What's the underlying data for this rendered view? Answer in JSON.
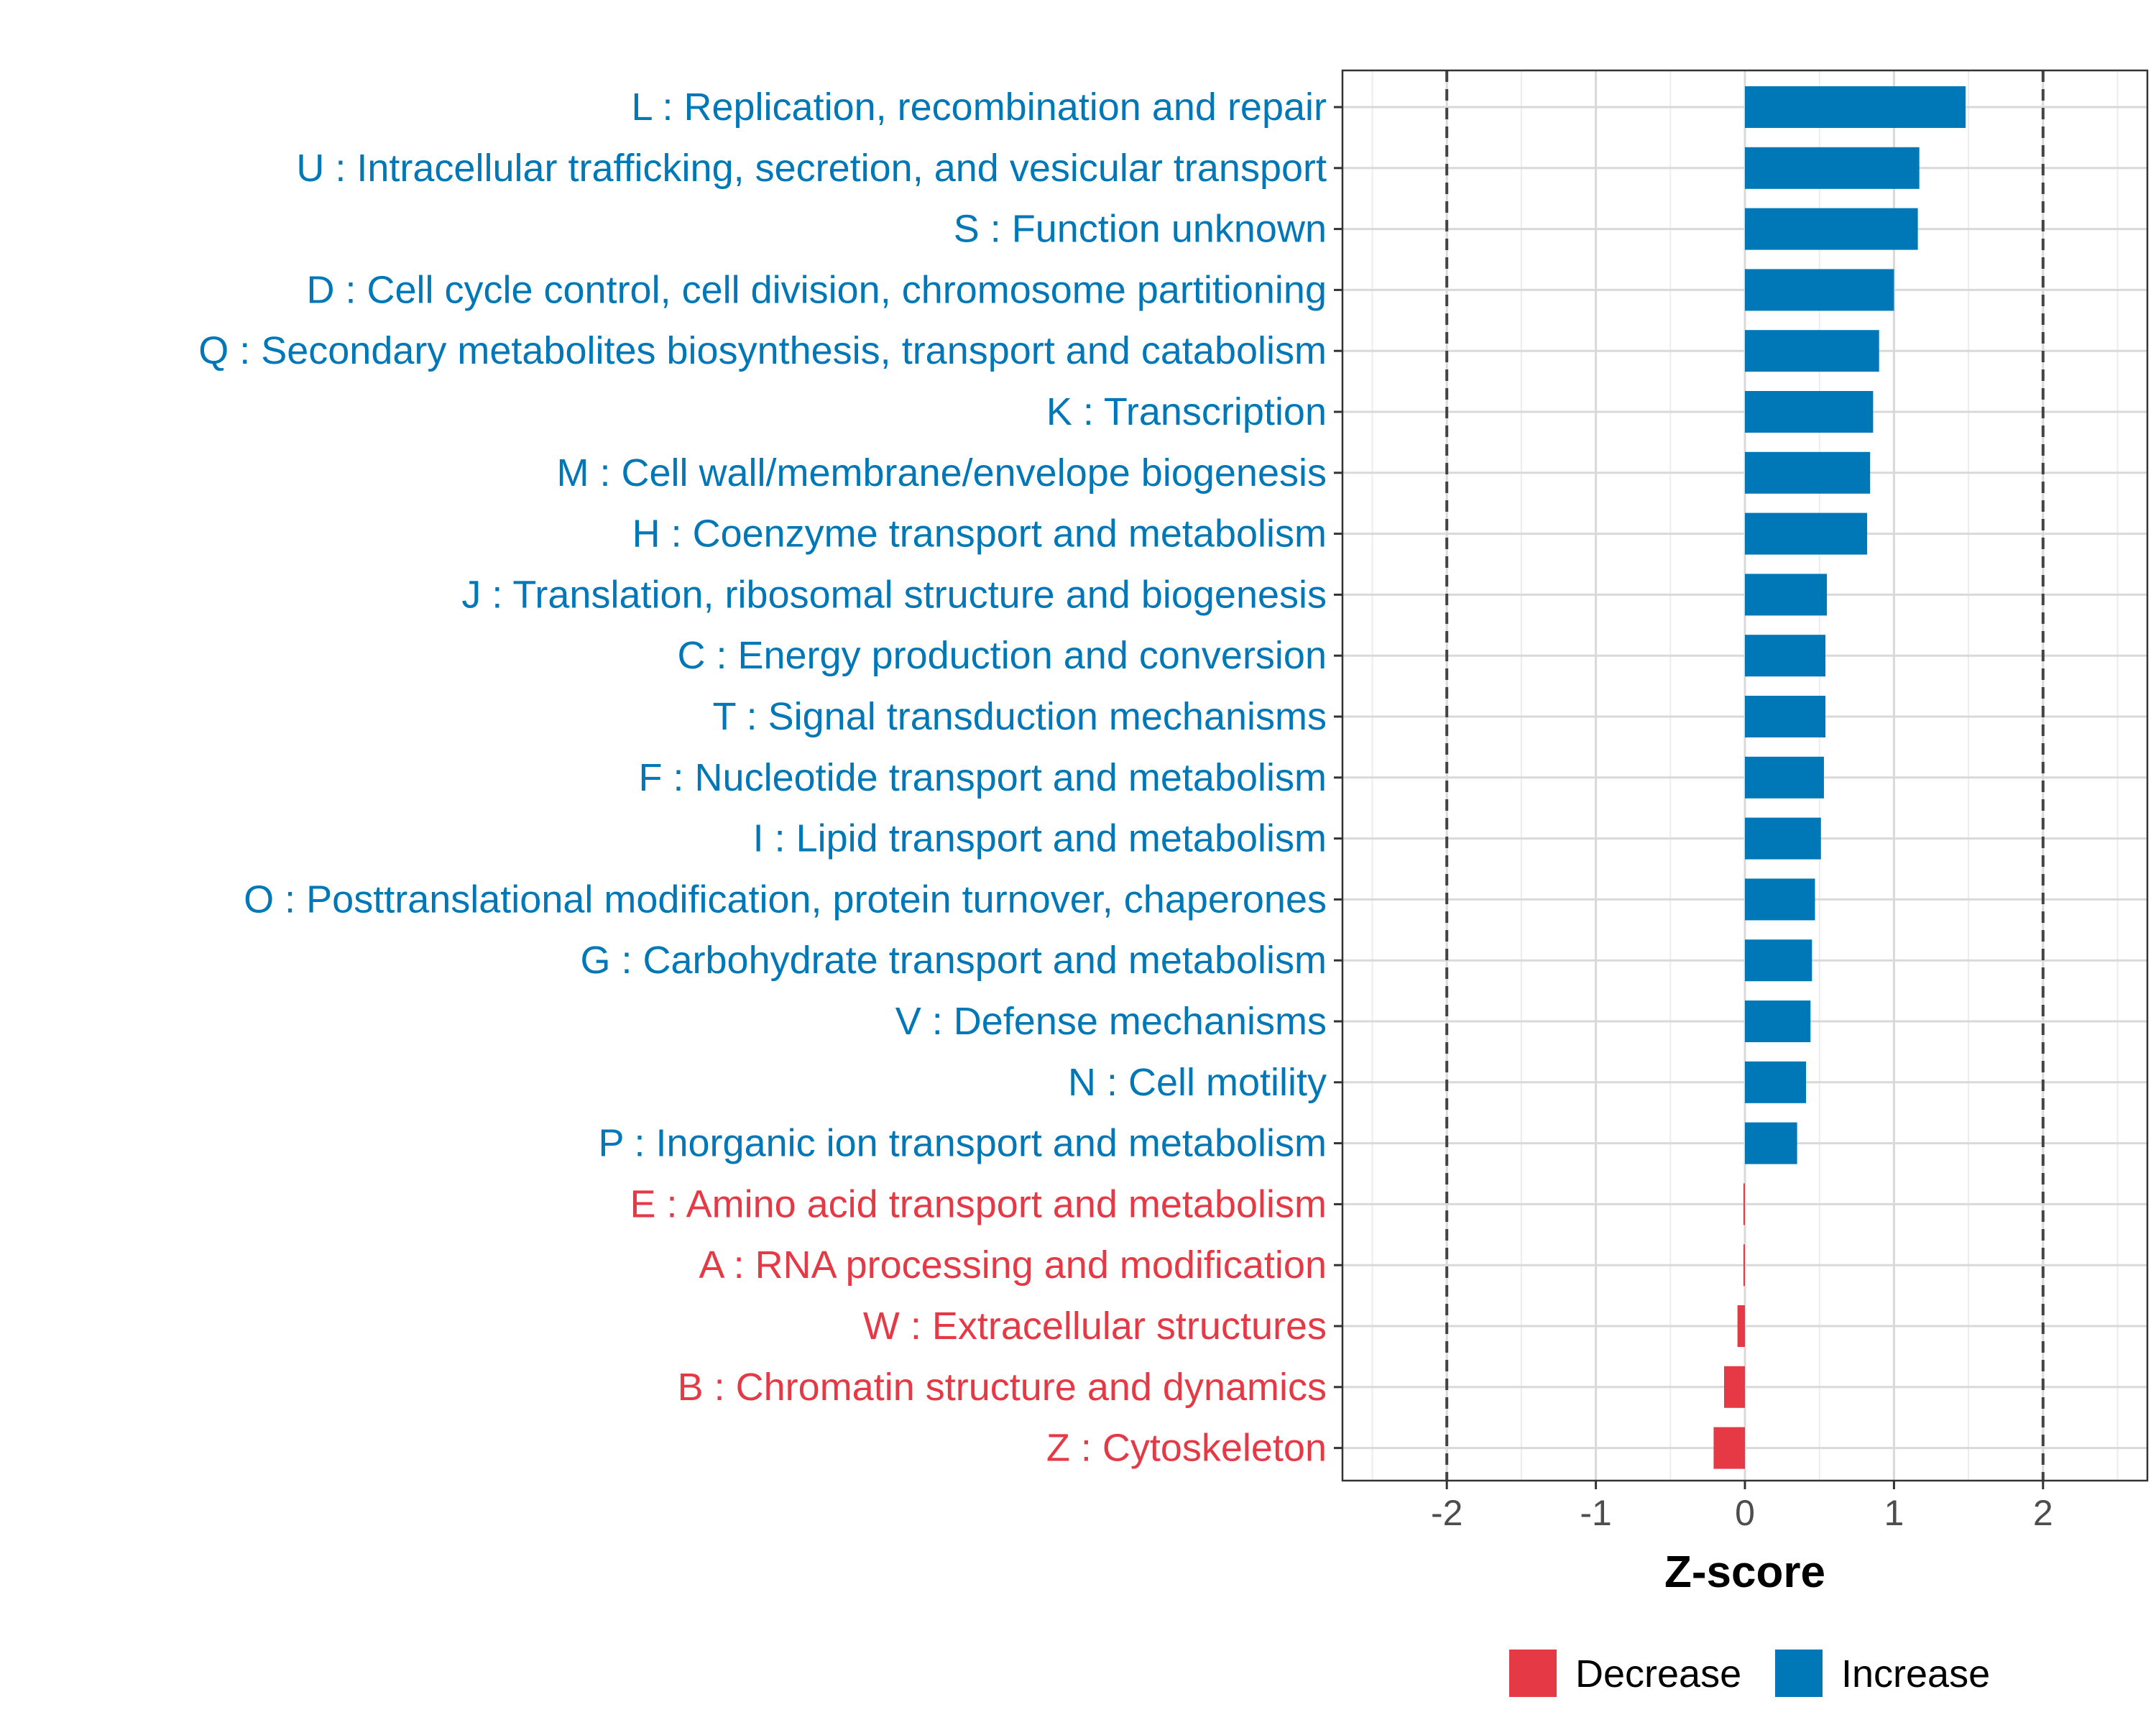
{
  "chart_data": {
    "type": "bar",
    "orientation": "horizontal",
    "title": "",
    "xlabel": "Z-score",
    "ylabel": "",
    "xlim": [
      -2.7,
      2.7
    ],
    "xticks": [
      -2,
      -1,
      0,
      1,
      2
    ],
    "reference_lines": [
      -2,
      2
    ],
    "grid": true,
    "legend_position": "bottom",
    "colors": {
      "Decrease": "#e63946",
      "Increase": "#0077b6"
    },
    "legend": [
      {
        "label": "Decrease",
        "color": "#e63946"
      },
      {
        "label": "Increase",
        "color": "#0077b6"
      }
    ],
    "categories": [
      "L : Replication, recombination and repair",
      "U : Intracellular trafficking, secretion, and vesicular transport",
      "S : Function unknown",
      "D : Cell cycle control, cell division, chromosome partitioning",
      "Q : Secondary metabolites biosynthesis, transport and catabolism",
      "K : Transcription",
      "M : Cell wall/membrane/envelope biogenesis",
      "H : Coenzyme transport and metabolism",
      "J : Translation, ribosomal structure and biogenesis",
      "C : Energy production and conversion",
      "T : Signal transduction mechanisms",
      "F : Nucleotide transport and metabolism",
      "I : Lipid transport and metabolism",
      "O : Posttranslational modification, protein turnover, chaperones",
      "G : Carbohydrate transport and metabolism",
      "V : Defense mechanisms",
      "N : Cell motility",
      "P : Inorganic ion transport and metabolism",
      "E : Amino acid transport and metabolism",
      "A : RNA processing and modification",
      "W : Extracellular structures",
      "B : Chromatin structure and dynamics",
      "Z : Cytoskeleton"
    ],
    "values": [
      1.48,
      1.17,
      1.16,
      1.0,
      0.9,
      0.86,
      0.84,
      0.82,
      0.55,
      0.54,
      0.54,
      0.53,
      0.51,
      0.47,
      0.45,
      0.44,
      0.41,
      0.35,
      -0.01,
      -0.01,
      -0.05,
      -0.14,
      -0.21
    ],
    "direction": [
      "Increase",
      "Increase",
      "Increase",
      "Increase",
      "Increase",
      "Increase",
      "Increase",
      "Increase",
      "Increase",
      "Increase",
      "Increase",
      "Increase",
      "Increase",
      "Increase",
      "Increase",
      "Increase",
      "Increase",
      "Increase",
      "Decrease",
      "Decrease",
      "Decrease",
      "Decrease",
      "Decrease"
    ]
  }
}
